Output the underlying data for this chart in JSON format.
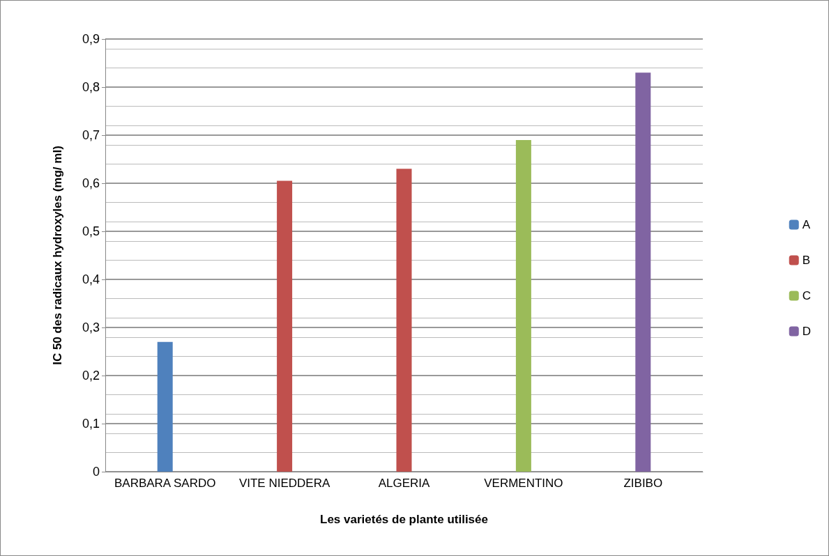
{
  "chart_data": {
    "type": "bar",
    "xlabel": "Les varietés de plante utilisée",
    "ylabel": "IC 50 des radicaux hydroxyles (mg/ ml)",
    "categories": [
      "BARBARA SARDO",
      "VITE NIEDDERA",
      "ALGERIA",
      "VERMENTINO",
      "ZIBIBO"
    ],
    "series": [
      {
        "name": "A",
        "color": "#4f81bd",
        "values": [
          0.27,
          null,
          null,
          null,
          null
        ]
      },
      {
        "name": "B",
        "color": "#c0504d",
        "values": [
          null,
          0.605,
          0.63,
          null,
          null
        ]
      },
      {
        "name": "C",
        "color": "#9bbb59",
        "values": [
          null,
          null,
          null,
          0.69,
          null
        ]
      },
      {
        "name": "D",
        "color": "#8064a2",
        "values": [
          null,
          null,
          null,
          null,
          0.83
        ]
      }
    ],
    "stacked": true,
    "ylim": [
      0,
      0.9
    ],
    "yticks": [
      {
        "value": 0,
        "label": "0"
      },
      {
        "value": 0.1,
        "label": "0,1"
      },
      {
        "value": 0.2,
        "label": "0,2"
      },
      {
        "value": 0.3,
        "label": "0,3"
      },
      {
        "value": 0.4,
        "label": "0,4"
      },
      {
        "value": 0.5,
        "label": "0,5"
      },
      {
        "value": 0.6,
        "label": "0,6"
      },
      {
        "value": 0.7,
        "label": "0,7"
      },
      {
        "value": 0.8,
        "label": "0,8"
      },
      {
        "value": 0.9,
        "label": "0,9"
      }
    ],
    "grid": true,
    "legend": "right"
  }
}
